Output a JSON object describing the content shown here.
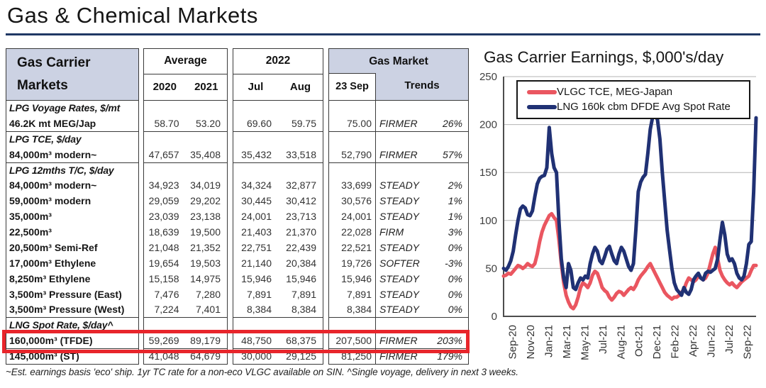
{
  "page": {
    "title": "Gas & Chemical Markets"
  },
  "table": {
    "header": {
      "line1": "Gas Carrier",
      "line2": "Markets"
    },
    "groups": [
      {
        "title": "Average",
        "cols": [
          "2020",
          "2021"
        ]
      },
      {
        "title": "2022",
        "cols": [
          "Jul",
          "Aug"
        ]
      },
      {
        "title": "Gas Market",
        "cols": [
          "23 Sep",
          "Trends"
        ]
      }
    ],
    "rows": [
      {
        "section": "LPG Voyage Rates, $/mt"
      },
      {
        "label": "46.2K mt MEG/Jap",
        "v": [
          "58.70",
          "53.20",
          "69.60",
          "59.75",
          "75.00"
        ],
        "trend": "FIRMER",
        "pct": "26%",
        "sep_after": true
      },
      {
        "section": "LPG TCE, $/day"
      },
      {
        "label": "84,000m³ modern~",
        "v": [
          "47,657",
          "35,408",
          "35,432",
          "33,518",
          "52,790"
        ],
        "trend": "FIRMER",
        "pct": "57%",
        "sep_after": true
      },
      {
        "section": "LPG 12mths T/C, $/day"
      },
      {
        "label": "84,000m³ modern~",
        "v": [
          "34,923",
          "34,019",
          "34,324",
          "32,877",
          "33,699"
        ],
        "trend": "STEADY",
        "pct": "2%"
      },
      {
        "label": "59,000m³ modern",
        "v": [
          "29,059",
          "29,202",
          "30,445",
          "30,412",
          "30,576"
        ],
        "trend": "STEADY",
        "pct": "1%"
      },
      {
        "label": "35,000m³",
        "v": [
          "23,039",
          "23,138",
          "24,001",
          "23,713",
          "24,001"
        ],
        "trend": "STEADY",
        "pct": "1%"
      },
      {
        "label": "22,500m³",
        "v": [
          "18,639",
          "19,500",
          "21,403",
          "21,370",
          "22,028"
        ],
        "trend": "FIRM",
        "pct": "3%"
      },
      {
        "label": "20,500m³ Semi-Ref",
        "v": [
          "21,048",
          "21,352",
          "22,751",
          "22,439",
          "22,521"
        ],
        "trend": "STEADY",
        "pct": "0%"
      },
      {
        "label": "17,000m³ Ethylene",
        "v": [
          "19,654",
          "19,503",
          "21,140",
          "20,384",
          "19,726"
        ],
        "trend": "SOFTER",
        "pct": "-3%"
      },
      {
        "label": "8,250m³ Ethylene",
        "v": [
          "15,158",
          "14,975",
          "15,946",
          "15,946",
          "15,946"
        ],
        "trend": "STEADY",
        "pct": "0%"
      },
      {
        "label": "3,500m³ Pressure (East)",
        "v": [
          "7,476",
          "7,280",
          "7,891",
          "7,891",
          "7,891"
        ],
        "trend": "STEADY",
        "pct": "0%"
      },
      {
        "label": "3,500m³ Pressure (West)",
        "v": [
          "7,224",
          "7,401",
          "8,384",
          "8,384",
          "8,384"
        ],
        "trend": "STEADY",
        "pct": "0%",
        "sep_after": true
      },
      {
        "section": "LNG Spot Rate, $/day^"
      },
      {
        "label": "160,000m³ (TFDE)",
        "v": [
          "59,269",
          "89,179",
          "48,750",
          "68,375",
          "207,500"
        ],
        "trend": "FIRMER",
        "pct": "203%",
        "highlight": true,
        "sep_after": true
      },
      {
        "label": "145,000m³ (ST)",
        "v": [
          "41,048",
          "64,679",
          "30,000",
          "29,125",
          "81,250"
        ],
        "trend": "FIRMER",
        "pct": "179%"
      }
    ],
    "footnote": "~Est. earnings basis 'eco' ship. 1yr TC rate for a non-eco VLGC available on SIN.  ^Single voyage, delivery in next 3 weeks."
  },
  "chart_data": {
    "type": "line",
    "title": "Gas Carrier Earnings, $,000's/day",
    "ylim": [
      0,
      250
    ],
    "ytick_step": 50,
    "grid": true,
    "legend_position": "top",
    "x_tick_labels": [
      "Sep-20",
      "Nov-20",
      "Jan-21",
      "Mar-21",
      "May-21",
      "Jul-21",
      "Aug-21",
      "Oct-21",
      "Dec-21",
      "Feb-22",
      "Apr-22",
      "Jun-22",
      "Jul-22",
      "Sep-22"
    ],
    "x_range": [
      "Sep-2020",
      "Sep-2022"
    ],
    "series": [
      {
        "name": "VLGC TCE, MEG-Japan",
        "color": "#ea5660",
        "values": [
          42,
          43,
          45,
          44,
          47,
          50,
          53,
          52,
          50,
          52,
          55,
          53,
          52,
          55,
          65,
          78,
          88,
          95,
          100,
          105,
          107,
          103,
          100,
          80,
          55,
          35,
          22,
          15,
          10,
          8,
          12,
          20,
          30,
          35,
          33,
          30,
          35,
          43,
          47,
          45,
          38,
          30,
          27,
          25,
          20,
          17,
          20,
          24,
          26,
          25,
          22,
          25,
          28,
          30,
          28,
          32,
          38,
          42,
          45,
          48,
          52,
          55,
          50,
          45,
          40,
          35,
          30,
          25,
          22,
          20,
          18,
          20,
          20,
          22,
          25,
          28,
          35,
          40,
          38,
          36,
          38,
          42,
          40,
          38,
          40,
          45,
          55,
          65,
          72,
          60,
          48,
          42,
          38,
          35,
          33,
          35,
          32,
          30,
          33,
          36,
          38,
          40,
          42,
          48,
          53,
          53
        ]
      },
      {
        "name": "LNG 160k cbm DFDE Avg Spot Rate",
        "color": "#203174",
        "values": [
          50,
          48,
          52,
          58,
          68,
          85,
          100,
          112,
          115,
          113,
          106,
          105,
          110,
          125,
          138,
          144,
          146,
          147,
          155,
          197,
          170,
          155,
          150,
          100,
          60,
          40,
          30,
          55,
          48,
          30,
          28,
          35,
          40,
          38,
          42,
          40,
          55,
          65,
          72,
          68,
          58,
          55,
          62,
          70,
          73,
          65,
          58,
          55,
          65,
          72,
          68,
          60,
          52,
          48,
          55,
          90,
          130,
          140,
          145,
          148,
          170,
          195,
          208,
          210,
          205,
          185,
          150,
          120,
          90,
          70,
          50,
          35,
          28,
          25,
          22,
          30,
          25,
          23,
          28,
          38,
          42,
          45,
          40,
          38,
          45,
          47,
          46,
          48,
          50,
          60,
          80,
          98,
          85,
          65,
          58,
          60,
          55,
          45,
          40,
          38,
          42,
          55,
          75,
          78,
          130,
          207
        ]
      }
    ]
  }
}
